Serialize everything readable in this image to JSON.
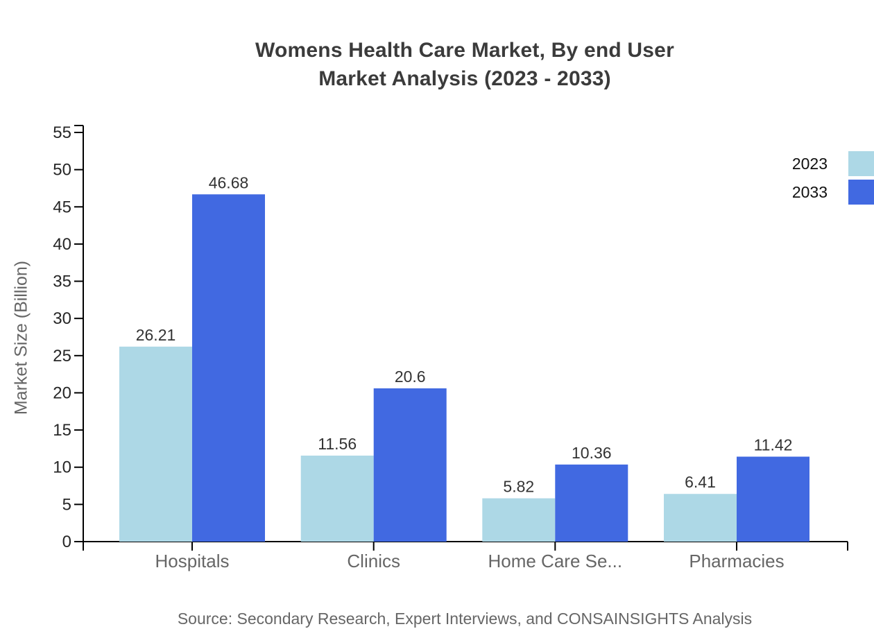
{
  "title": {
    "line1": "Womens Health Care Market, By end User",
    "line2": "Market Analysis (2023 - 2033)"
  },
  "source": "Source: Secondary Research, Expert Interviews, and CONSAINSIGHTS Analysis",
  "colors": {
    "series_2023": "#ADD8E6",
    "series_2033": "#4169E1",
    "axis": "#000000",
    "title_text": "#3b3b3b",
    "tick_text": "#262626",
    "value_text": "#333333",
    "category_text": "#666666",
    "muted_text": "#666666"
  },
  "chart_data": {
    "type": "bar",
    "categories": [
      "Hospitals",
      "Clinics",
      "Home Care Se...",
      "Pharmacies"
    ],
    "series": [
      {
        "name": "2023",
        "color_key": "series_2023",
        "values": [
          26.21,
          11.56,
          5.82,
          6.41
        ]
      },
      {
        "name": "2033",
        "color_key": "series_2033",
        "values": [
          46.68,
          20.6,
          10.36,
          11.42
        ]
      }
    ],
    "title": "Womens Health Care Market, By end User Market Analysis (2023 - 2033)",
    "xlabel": "",
    "ylabel": "Market Size (Billion)",
    "ylim": [
      0,
      55
    ],
    "yticks": [
      0,
      5,
      10,
      15,
      20,
      25,
      30,
      35,
      40,
      45,
      50,
      55
    ],
    "grid": false,
    "legend_position": "top-right",
    "legend": [
      "2023",
      "2033"
    ]
  }
}
